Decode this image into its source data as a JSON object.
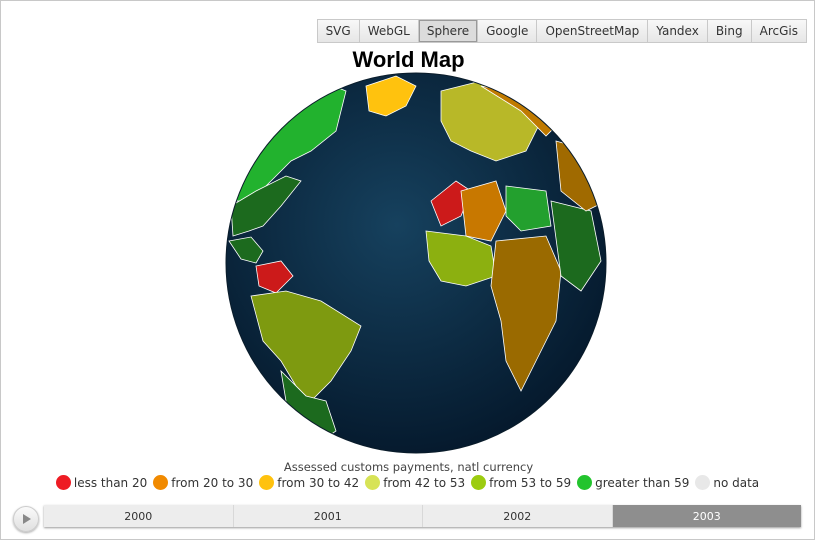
{
  "modes": [
    {
      "label": "SVG",
      "active": false
    },
    {
      "label": "WebGL",
      "active": false
    },
    {
      "label": "Sphere",
      "active": true
    },
    {
      "label": "Google",
      "active": false
    },
    {
      "label": "OpenStreetMap",
      "active": false
    },
    {
      "label": "Yandex",
      "active": false
    },
    {
      "label": "Bing",
      "active": false
    },
    {
      "label": "ArcGis",
      "active": false
    }
  ],
  "title": "World Map",
  "legend": {
    "title": "Assessed customs payments, natl currency",
    "items": [
      {
        "label": "less than 20",
        "color": "#ee1c24"
      },
      {
        "label": "from 20 to 30",
        "color": "#f18a00"
      },
      {
        "label": "from 30 to 42",
        "color": "#ffc20e"
      },
      {
        "label": "from 42 to 53",
        "color": "#d7e356"
      },
      {
        "label": "from 53 to 59",
        "color": "#9ccc10"
      },
      {
        "label": "greater than 59",
        "color": "#23c42e"
      },
      {
        "label": "no data",
        "color": "#e8e8e8"
      }
    ]
  },
  "timeline": {
    "years": [
      "2000",
      "2001",
      "2002",
      "2003"
    ],
    "selected": "2003"
  },
  "colors": {
    "ocean": "#0d3049"
  }
}
